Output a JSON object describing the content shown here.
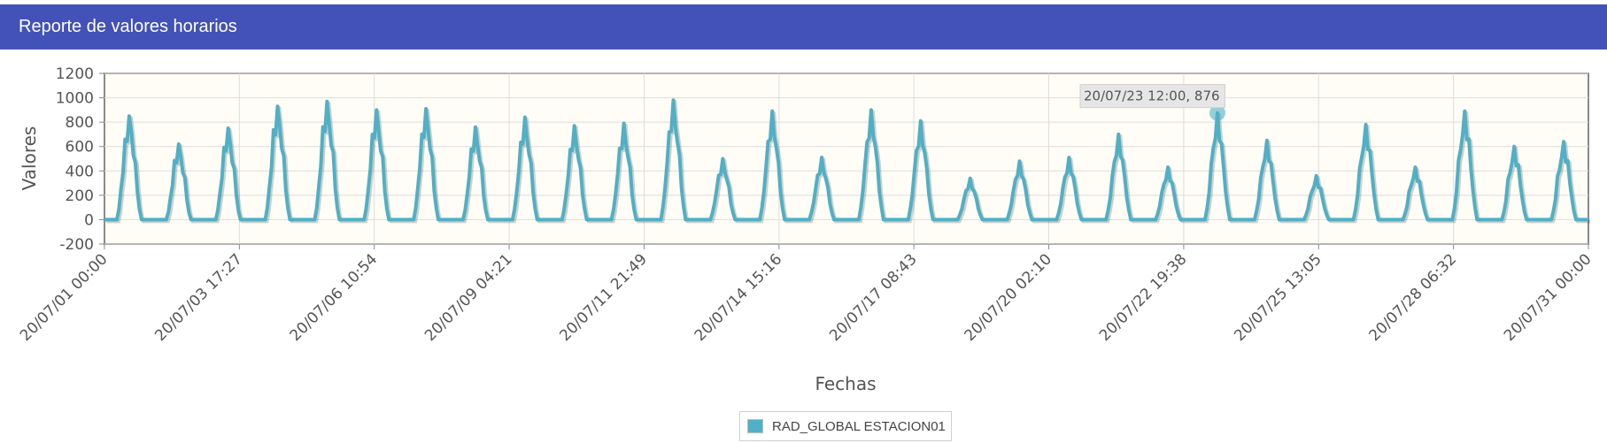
{
  "header": {
    "title": "Reporte de valores horarios"
  },
  "colors": {
    "header_bg": "#4352b8",
    "series": "#4fb0c6",
    "plot_bg": "#fffdf6",
    "grid": "#dddddd"
  },
  "legend": {
    "label": "RAD_GLOBAL ESTACION01"
  },
  "tooltip": {
    "text": "20/07/23 12:00, 876"
  },
  "chart_data": {
    "type": "line",
    "title": "",
    "xlabel": "Fechas",
    "ylabel": "Valores",
    "ylim": [
      -200,
      1200
    ],
    "xlim": [
      "2020-07-01 00:00",
      "2020-07-31 00:00"
    ],
    "yticks": [
      1200,
      1000,
      800,
      600,
      400,
      200,
      0,
      -200
    ],
    "xtick_labels": [
      "20/07/01 00:00",
      "20/07/03 17:27",
      "20/07/06 10:54",
      "20/07/09 04:21",
      "20/07/11 21:49",
      "20/07/14 15:16",
      "20/07/17 08:43",
      "20/07/20 02:10",
      "20/07/22 19:38",
      "20/07/25 13:05",
      "20/07/28 06:32",
      "20/07/31 00:00"
    ],
    "grid": true,
    "legend_position": "bottom-center",
    "series": [
      {
        "name": "RAD_GLOBAL ESTACION01",
        "x_unit": "hours since 2020-07-01 00:00",
        "daily_peaks": [
          850,
          620,
          750,
          930,
          970,
          900,
          910,
          760,
          840,
          770,
          790,
          980,
          500,
          890,
          510,
          900,
          810,
          340,
          480,
          510,
          700,
          430,
          876,
          650,
          360,
          780,
          430,
          890,
          600,
          640
        ]
      }
    ],
    "highlighted_point": {
      "x": "20/07/23 12:00",
      "y": 876
    }
  }
}
